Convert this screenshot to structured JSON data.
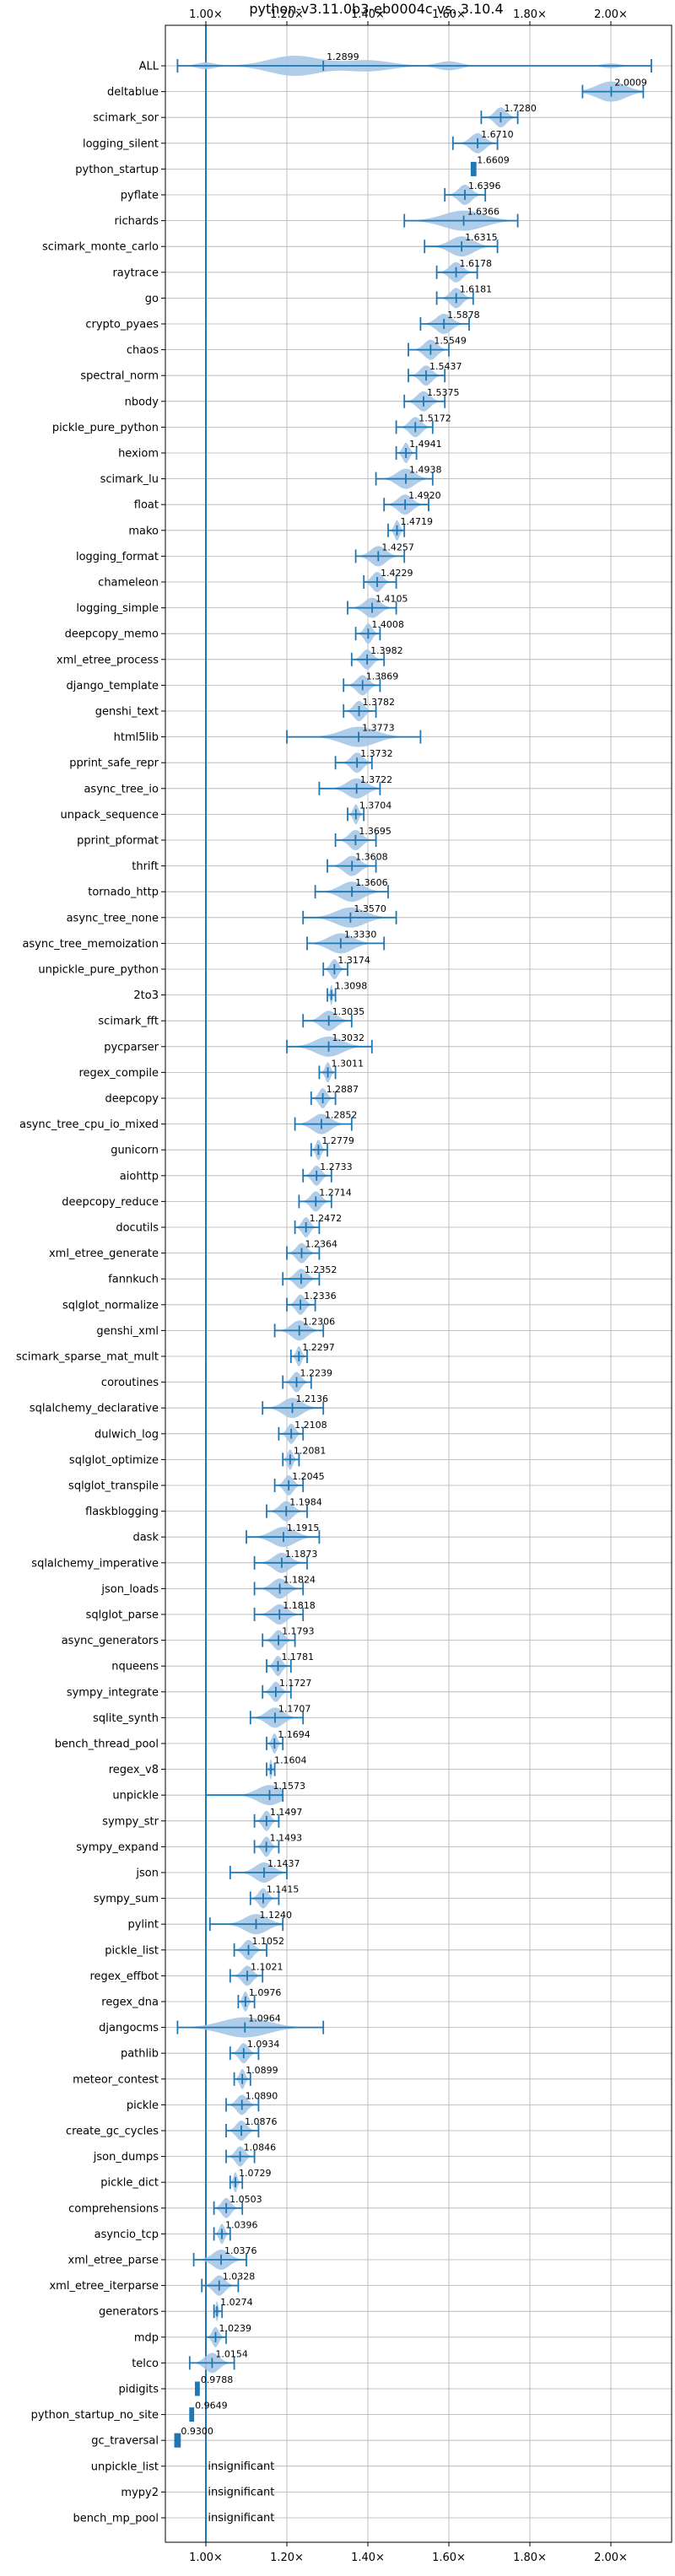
{
  "chart_data": {
    "type": "violin",
    "title": "python-v3.11.0b3-eb0004c vs. 3.10.4",
    "xlabel": "",
    "ylabel": "",
    "xlim": [
      0.9,
      2.15
    ],
    "x_ticks": [
      1.0,
      1.2,
      1.4,
      1.6,
      1.8,
      2.0
    ],
    "x_tick_labels": [
      "1.00×",
      "1.20×",
      "1.40×",
      "1.60×",
      "1.80×",
      "2.00×"
    ],
    "x_tick_positions": [
      "top",
      "bottom"
    ],
    "reference_line": 1.0,
    "grid": true,
    "colors": {
      "violin": "#a6c8e6",
      "line": "#1f77b4",
      "grid": "#b0b0b0"
    },
    "insignificant_text": "insignificant",
    "benchmarks": [
      {
        "name": "ALL",
        "label": "1.2899",
        "center": 1.2899,
        "min": 0.93,
        "max": 2.1,
        "spread": 0.12,
        "shape": "all"
      },
      {
        "name": "deltablue",
        "label": "2.0009",
        "center": 2.0009,
        "min": 1.93,
        "max": 2.08,
        "spread": 0.05
      },
      {
        "name": "scimark_sor",
        "label": "1.7280",
        "center": 1.728,
        "min": 1.68,
        "max": 1.77
      },
      {
        "name": "logging_silent",
        "label": "1.6710",
        "center": 1.671,
        "min": 1.61,
        "max": 1.72
      },
      {
        "name": "python_startup",
        "label": "1.6609",
        "center": 1.6609,
        "min": 1.655,
        "max": 1.667,
        "shape": "box"
      },
      {
        "name": "pyflate",
        "label": "1.6396",
        "center": 1.6396,
        "min": 1.59,
        "max": 1.69
      },
      {
        "name": "richards",
        "label": "1.6366",
        "center": 1.6366,
        "min": 1.49,
        "max": 1.77,
        "spread": 0.07
      },
      {
        "name": "scimark_monte_carlo",
        "label": "1.6315",
        "center": 1.6315,
        "min": 1.54,
        "max": 1.72
      },
      {
        "name": "raytrace",
        "label": "1.6178",
        "center": 1.6178,
        "min": 1.57,
        "max": 1.67
      },
      {
        "name": "go",
        "label": "1.6181",
        "center": 1.6181,
        "min": 1.57,
        "max": 1.66
      },
      {
        "name": "crypto_pyaes",
        "label": "1.5878",
        "center": 1.5878,
        "min": 1.53,
        "max": 1.65
      },
      {
        "name": "chaos",
        "label": "1.5549",
        "center": 1.5549,
        "min": 1.5,
        "max": 1.6
      },
      {
        "name": "spectral_norm",
        "label": "1.5437",
        "center": 1.5437,
        "min": 1.5,
        "max": 1.59
      },
      {
        "name": "nbody",
        "label": "1.5375",
        "center": 1.5375,
        "min": 1.49,
        "max": 1.59
      },
      {
        "name": "pickle_pure_python",
        "label": "1.5172",
        "center": 1.5172,
        "min": 1.47,
        "max": 1.56
      },
      {
        "name": "hexiom",
        "label": "1.4941",
        "center": 1.4941,
        "min": 1.47,
        "max": 1.52
      },
      {
        "name": "scimark_lu",
        "label": "1.4938",
        "center": 1.4938,
        "min": 1.42,
        "max": 1.56
      },
      {
        "name": "float",
        "label": "1.4920",
        "center": 1.492,
        "min": 1.44,
        "max": 1.55
      },
      {
        "name": "mako",
        "label": "1.4719",
        "center": 1.4719,
        "min": 1.45,
        "max": 1.49
      },
      {
        "name": "logging_format",
        "label": "1.4257",
        "center": 1.4257,
        "min": 1.37,
        "max": 1.49
      },
      {
        "name": "chameleon",
        "label": "1.4229",
        "center": 1.4229,
        "min": 1.39,
        "max": 1.47
      },
      {
        "name": "logging_simple",
        "label": "1.4105",
        "center": 1.4105,
        "min": 1.35,
        "max": 1.47
      },
      {
        "name": "deepcopy_memo",
        "label": "1.4008",
        "center": 1.4008,
        "min": 1.37,
        "max": 1.43
      },
      {
        "name": "xml_etree_process",
        "label": "1.3982",
        "center": 1.3982,
        "min": 1.36,
        "max": 1.44
      },
      {
        "name": "django_template",
        "label": "1.3869",
        "center": 1.3869,
        "min": 1.34,
        "max": 1.43
      },
      {
        "name": "genshi_text",
        "label": "1.3782",
        "center": 1.3782,
        "min": 1.34,
        "max": 1.42
      },
      {
        "name": "html5lib",
        "label": "1.3773",
        "center": 1.3773,
        "min": 1.2,
        "max": 1.53,
        "spread": 0.06
      },
      {
        "name": "pprint_safe_repr",
        "label": "1.3732",
        "center": 1.3732,
        "min": 1.32,
        "max": 1.41
      },
      {
        "name": "async_tree_io",
        "label": "1.3722",
        "center": 1.3722,
        "min": 1.28,
        "max": 1.43
      },
      {
        "name": "unpack_sequence",
        "label": "1.3704",
        "center": 1.3704,
        "min": 1.35,
        "max": 1.39
      },
      {
        "name": "pprint_pformat",
        "label": "1.3695",
        "center": 1.3695,
        "min": 1.32,
        "max": 1.42
      },
      {
        "name": "thrift",
        "label": "1.3608",
        "center": 1.3608,
        "min": 1.3,
        "max": 1.42
      },
      {
        "name": "tornado_http",
        "label": "1.3606",
        "center": 1.3606,
        "min": 1.27,
        "max": 1.45
      },
      {
        "name": "async_tree_none",
        "label": "1.3570",
        "center": 1.357,
        "min": 1.24,
        "max": 1.47
      },
      {
        "name": "async_tree_memoization",
        "label": "1.3330",
        "center": 1.333,
        "min": 1.25,
        "max": 1.44
      },
      {
        "name": "unpickle_pure_python",
        "label": "1.3174",
        "center": 1.3174,
        "min": 1.29,
        "max": 1.35
      },
      {
        "name": "2to3",
        "label": "1.3098",
        "center": 1.3098,
        "min": 1.3,
        "max": 1.32
      },
      {
        "name": "scimark_fft",
        "label": "1.3035",
        "center": 1.3035,
        "min": 1.24,
        "max": 1.36
      },
      {
        "name": "pycparser",
        "label": "1.3032",
        "center": 1.3032,
        "min": 1.2,
        "max": 1.41
      },
      {
        "name": "regex_compile",
        "label": "1.3011",
        "center": 1.3011,
        "min": 1.28,
        "max": 1.32
      },
      {
        "name": "deepcopy",
        "label": "1.2887",
        "center": 1.2887,
        "min": 1.26,
        "max": 1.32
      },
      {
        "name": "async_tree_cpu_io_mixed",
        "label": "1.2852",
        "center": 1.2852,
        "min": 1.22,
        "max": 1.36
      },
      {
        "name": "gunicorn",
        "label": "1.2779",
        "center": 1.2779,
        "min": 1.26,
        "max": 1.3
      },
      {
        "name": "aiohttp",
        "label": "1.2733",
        "center": 1.2733,
        "min": 1.24,
        "max": 1.31
      },
      {
        "name": "deepcopy_reduce",
        "label": "1.2714",
        "center": 1.2714,
        "min": 1.23,
        "max": 1.31
      },
      {
        "name": "docutils",
        "label": "1.2472",
        "center": 1.2472,
        "min": 1.22,
        "max": 1.28
      },
      {
        "name": "xml_etree_generate",
        "label": "1.2364",
        "center": 1.2364,
        "min": 1.2,
        "max": 1.28
      },
      {
        "name": "fannkuch",
        "label": "1.2352",
        "center": 1.2352,
        "min": 1.19,
        "max": 1.28
      },
      {
        "name": "sqlglot_normalize",
        "label": "1.2336",
        "center": 1.2336,
        "min": 1.2,
        "max": 1.27
      },
      {
        "name": "genshi_xml",
        "label": "1.2306",
        "center": 1.2306,
        "min": 1.17,
        "max": 1.29
      },
      {
        "name": "scimark_sparse_mat_mult",
        "label": "1.2297",
        "center": 1.2297,
        "min": 1.21,
        "max": 1.25
      },
      {
        "name": "coroutines",
        "label": "1.2239",
        "center": 1.2239,
        "min": 1.19,
        "max": 1.26
      },
      {
        "name": "sqlalchemy_declarative",
        "label": "1.2136",
        "center": 1.2136,
        "min": 1.14,
        "max": 1.29
      },
      {
        "name": "dulwich_log",
        "label": "1.2108",
        "center": 1.2108,
        "min": 1.18,
        "max": 1.24
      },
      {
        "name": "sqlglot_optimize",
        "label": "1.2081",
        "center": 1.2081,
        "min": 1.19,
        "max": 1.23
      },
      {
        "name": "sqlglot_transpile",
        "label": "1.2045",
        "center": 1.2045,
        "min": 1.17,
        "max": 1.24
      },
      {
        "name": "flaskblogging",
        "label": "1.1984",
        "center": 1.1984,
        "min": 1.15,
        "max": 1.25
      },
      {
        "name": "dask",
        "label": "1.1915",
        "center": 1.1915,
        "min": 1.1,
        "max": 1.28
      },
      {
        "name": "sqlalchemy_imperative",
        "label": "1.1873",
        "center": 1.1873,
        "min": 1.12,
        "max": 1.25
      },
      {
        "name": "json_loads",
        "label": "1.1824",
        "center": 1.1824,
        "min": 1.12,
        "max": 1.24
      },
      {
        "name": "sqlglot_parse",
        "label": "1.1818",
        "center": 1.1818,
        "min": 1.12,
        "max": 1.24
      },
      {
        "name": "async_generators",
        "label": "1.1793",
        "center": 1.1793,
        "min": 1.14,
        "max": 1.22
      },
      {
        "name": "nqueens",
        "label": "1.1781",
        "center": 1.1781,
        "min": 1.15,
        "max": 1.21
      },
      {
        "name": "sympy_integrate",
        "label": "1.1727",
        "center": 1.1727,
        "min": 1.14,
        "max": 1.21
      },
      {
        "name": "sqlite_synth",
        "label": "1.1707",
        "center": 1.1707,
        "min": 1.11,
        "max": 1.24
      },
      {
        "name": "bench_thread_pool",
        "label": "1.1694",
        "center": 1.1694,
        "min": 1.15,
        "max": 1.19
      },
      {
        "name": "regex_v8",
        "label": "1.1604",
        "center": 1.1604,
        "min": 1.15,
        "max": 1.17
      },
      {
        "name": "unpickle",
        "label": "1.1573",
        "center": 1.1573,
        "min": 1.0,
        "max": 1.19
      },
      {
        "name": "sympy_str",
        "label": "1.1497",
        "center": 1.1497,
        "min": 1.12,
        "max": 1.18
      },
      {
        "name": "sympy_expand",
        "label": "1.1493",
        "center": 1.1493,
        "min": 1.12,
        "max": 1.18
      },
      {
        "name": "json",
        "label": "1.1437",
        "center": 1.1437,
        "min": 1.06,
        "max": 1.2
      },
      {
        "name": "sympy_sum",
        "label": "1.1415",
        "center": 1.1415,
        "min": 1.11,
        "max": 1.18
      },
      {
        "name": "pylint",
        "label": "1.1240",
        "center": 1.124,
        "min": 1.01,
        "max": 1.19
      },
      {
        "name": "pickle_list",
        "label": "1.1052",
        "center": 1.1052,
        "min": 1.07,
        "max": 1.15
      },
      {
        "name": "regex_effbot",
        "label": "1.1021",
        "center": 1.1021,
        "min": 1.06,
        "max": 1.14
      },
      {
        "name": "regex_dna",
        "label": "1.0976",
        "center": 1.0976,
        "min": 1.08,
        "max": 1.12
      },
      {
        "name": "djangocms",
        "label": "1.0964",
        "center": 1.0964,
        "min": 0.93,
        "max": 1.29
      },
      {
        "name": "pathlib",
        "label": "1.0934",
        "center": 1.0934,
        "min": 1.06,
        "max": 1.13
      },
      {
        "name": "meteor_contest",
        "label": "1.0899",
        "center": 1.0899,
        "min": 1.07,
        "max": 1.11
      },
      {
        "name": "pickle",
        "label": "1.0890",
        "center": 1.089,
        "min": 1.05,
        "max": 1.13
      },
      {
        "name": "create_gc_cycles",
        "label": "1.0876",
        "center": 1.0876,
        "min": 1.05,
        "max": 1.13
      },
      {
        "name": "json_dumps",
        "label": "1.0846",
        "center": 1.0846,
        "min": 1.05,
        "max": 1.12
      },
      {
        "name": "pickle_dict",
        "label": "1.0729",
        "center": 1.0729,
        "min": 1.06,
        "max": 1.09
      },
      {
        "name": "comprehensions",
        "label": "1.0503",
        "center": 1.0503,
        "min": 1.02,
        "max": 1.09
      },
      {
        "name": "asyncio_tcp",
        "label": "1.0396",
        "center": 1.0396,
        "min": 1.02,
        "max": 1.06
      },
      {
        "name": "xml_etree_parse",
        "label": "1.0376",
        "center": 1.0376,
        "min": 0.97,
        "max": 1.1
      },
      {
        "name": "xml_etree_iterparse",
        "label": "1.0328",
        "center": 1.0328,
        "min": 0.99,
        "max": 1.08
      },
      {
        "name": "generators",
        "label": "1.0274",
        "center": 1.0274,
        "min": 1.02,
        "max": 1.04
      },
      {
        "name": "mdp",
        "label": "1.0239",
        "center": 1.0239,
        "min": 1.0,
        "max": 1.05
      },
      {
        "name": "telco",
        "label": "1.0154",
        "center": 1.0154,
        "min": 0.96,
        "max": 1.07
      },
      {
        "name": "pidigits",
        "label": "0.9788",
        "center": 0.9788,
        "min": 0.974,
        "max": 0.984,
        "shape": "box"
      },
      {
        "name": "python_startup_no_site",
        "label": "0.9649",
        "center": 0.9649,
        "min": 0.96,
        "max": 0.97,
        "shape": "box"
      },
      {
        "name": "gc_traversal",
        "label": "0.9300",
        "center": 0.93,
        "min": 0.923,
        "max": 0.937,
        "shape": "box"
      },
      {
        "name": "unpickle_list",
        "label": "insignificant",
        "insignificant": true
      },
      {
        "name": "mypy2",
        "label": "insignificant",
        "insignificant": true
      },
      {
        "name": "bench_mp_pool",
        "label": "insignificant",
        "insignificant": true
      }
    ]
  }
}
